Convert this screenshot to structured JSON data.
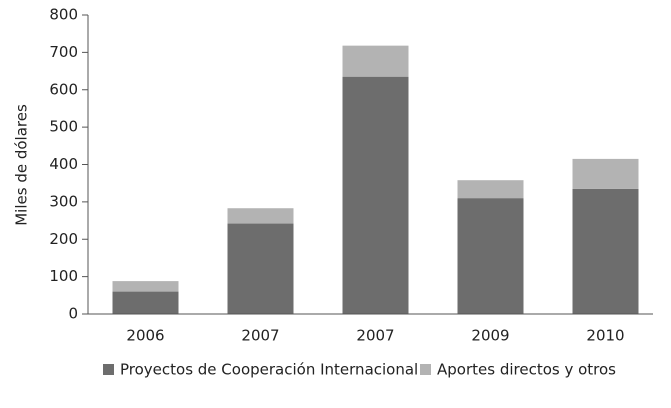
{
  "chart_data": {
    "type": "stacked_bar",
    "y_label": "Miles de dólares",
    "categories": [
      "2006",
      "2007",
      "2007",
      "2009",
      "2010"
    ],
    "series": [
      {
        "name": "Proyectos de Cooperación Internacional",
        "color": "#6d6d6d",
        "values": [
          60,
          242,
          635,
          310,
          335
        ]
      },
      {
        "name": "Aportes directos y otros",
        "color": "#b3b3b3",
        "values": [
          28,
          41,
          83,
          48,
          80
        ]
      }
    ],
    "ylim": [
      0,
      800
    ],
    "yticks": [
      0,
      100,
      200,
      300,
      400,
      500,
      600,
      700,
      800
    ]
  }
}
